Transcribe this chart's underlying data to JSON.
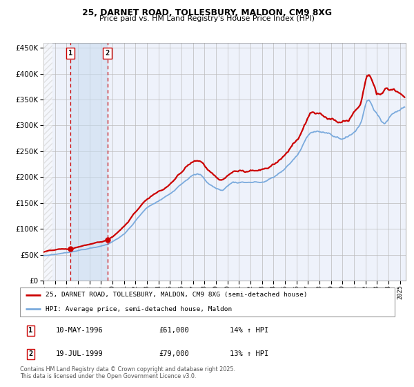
{
  "title_line1": "25, DARNET ROAD, TOLLESBURY, MALDON, CM9 8XG",
  "title_line2": "Price paid vs. HM Land Registry's House Price Index (HPI)",
  "sale1_date_num": 1996.36,
  "sale1_price": 61000,
  "sale1_label": "1",
  "sale2_date_num": 1999.55,
  "sale2_price": 79000,
  "sale2_label": "2",
  "legend_line1": "25, DARNET ROAD, TOLLESBURY, MALDON, CM9 8XG (semi-detached house)",
  "legend_line2": "HPI: Average price, semi-detached house, Maldon",
  "table_row1": [
    "1",
    "10-MAY-1996",
    "£61,000",
    "14% ↑ HPI"
  ],
  "table_row2": [
    "2",
    "19-JUL-1999",
    "£79,000",
    "13% ↑ HPI"
  ],
  "footnote": "Contains HM Land Registry data © Crown copyright and database right 2025.\nThis data is licensed under the Open Government Licence v3.0.",
  "red_color": "#cc0000",
  "blue_color": "#7aaadd",
  "bg_color": "#eef2fb",
  "grid_color": "#bbbbbb",
  "ylim_max": 460000,
  "xstart": 1994.0,
  "xend": 2025.5
}
